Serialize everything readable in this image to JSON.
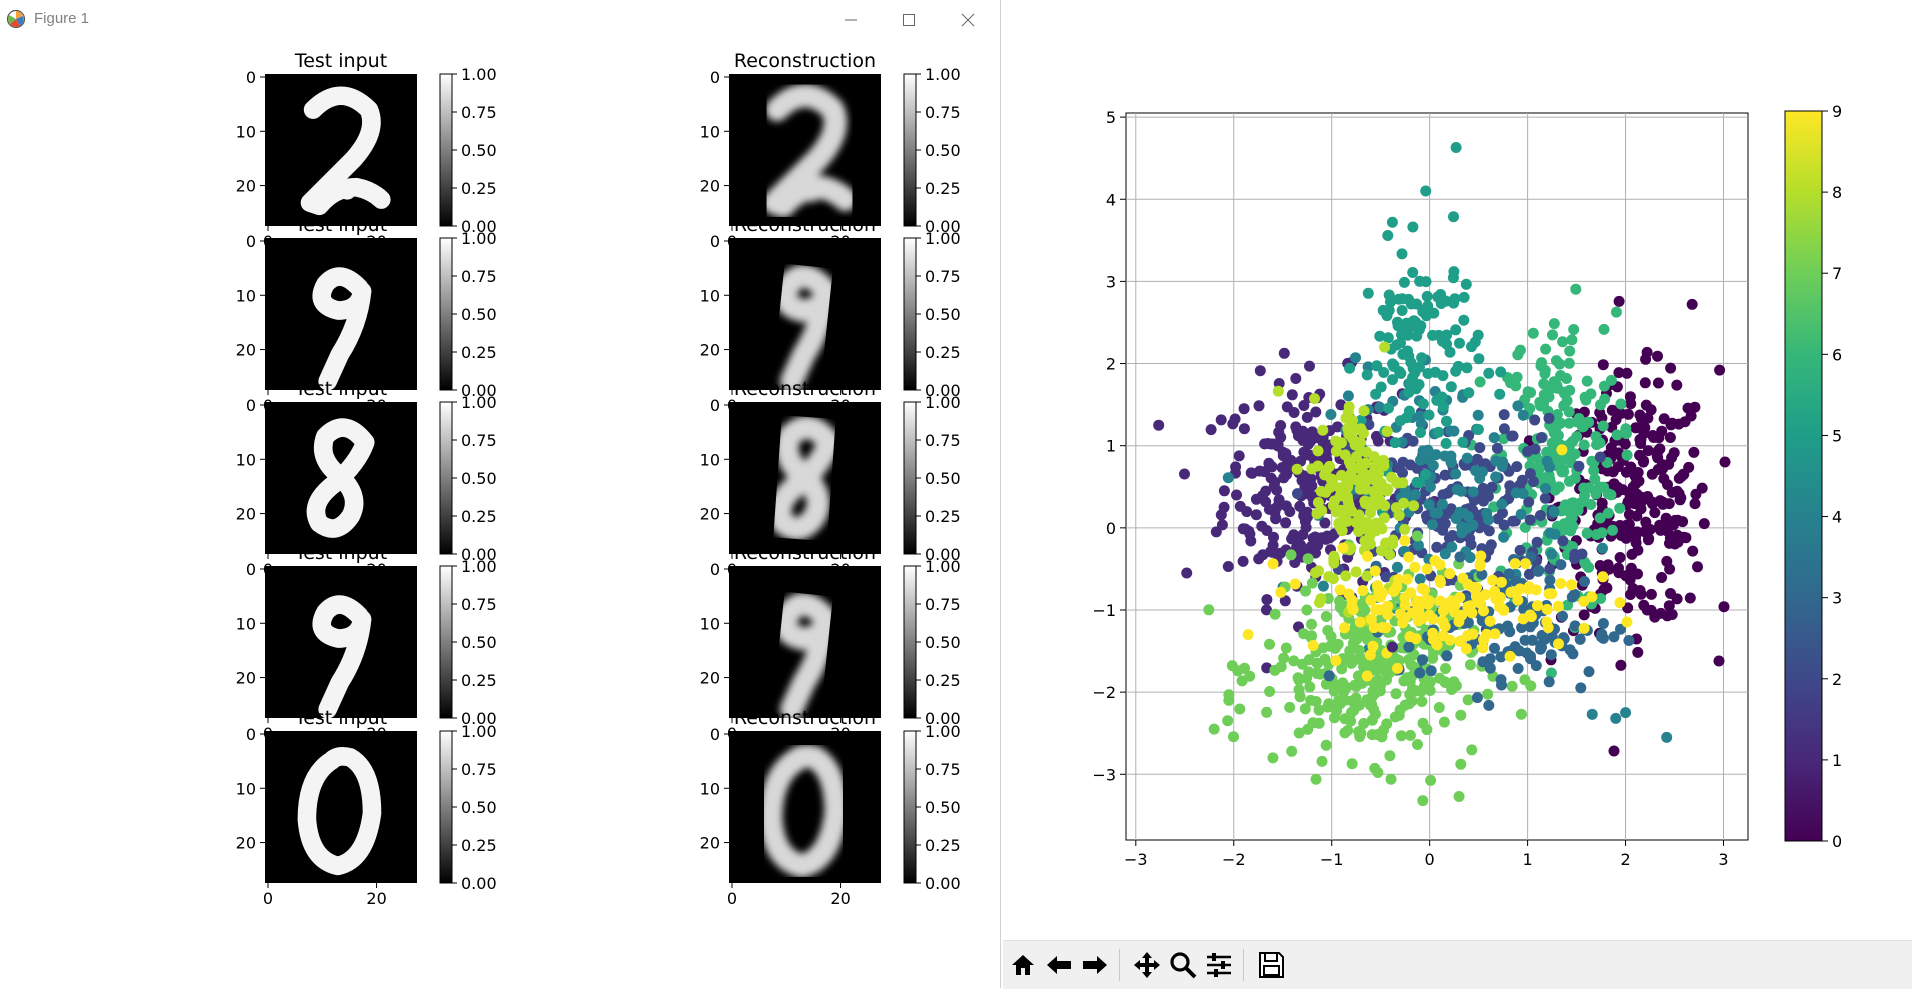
{
  "window": {
    "title": "Figure 1"
  },
  "left_figure": {
    "rows": [
      {
        "left_title": "Test input",
        "right_title": "Reconstruction",
        "digit": "2"
      },
      {
        "left_title": "Test input",
        "right_title": "Reconstruction",
        "digit": "9"
      },
      {
        "left_title": "Test input",
        "right_title": "Reconstruction",
        "digit": "8"
      },
      {
        "left_title": "Test input",
        "right_title": "Reconstruction",
        "digit": "9"
      },
      {
        "left_title": "Test input",
        "right_title": "Reconstruction",
        "digit": "0"
      }
    ],
    "image_ticks_y": [
      "0",
      "10",
      "20"
    ],
    "image_ticks_x": [
      "0",
      "20"
    ],
    "colorbar_ticks": [
      "1.00",
      "0.75",
      "0.50",
      "0.25",
      "0.00"
    ]
  },
  "chart_data": {
    "type": "scatter",
    "title": "",
    "xlabel": "",
    "ylabel": "",
    "xlim": [
      -3.1,
      3.25
    ],
    "ylim": [
      -3.8,
      5.05
    ],
    "xticks": [
      -3,
      -2,
      -1,
      0,
      1,
      2,
      3
    ],
    "yticks": [
      -3,
      -2,
      -1,
      0,
      1,
      2,
      3,
      4,
      5
    ],
    "grid": true,
    "colormap": "viridis",
    "colorbar": {
      "min": 0,
      "max": 9,
      "ticks": [
        0,
        1,
        2,
        3,
        4,
        5,
        6,
        7,
        8,
        9
      ]
    },
    "clusters": [
      {
        "label": 0,
        "center": [
          2.1,
          0.3
        ],
        "spread": [
          0.38,
          0.75
        ],
        "count": 280
      },
      {
        "label": 1,
        "center": [
          -1.2,
          0.5
        ],
        "spread": [
          0.45,
          0.65
        ],
        "count": 280
      },
      {
        "label": 2,
        "center": [
          0.3,
          0.2
        ],
        "spread": [
          0.55,
          0.55
        ],
        "count": 200
      },
      {
        "label": 3,
        "center": [
          0.8,
          -1.2
        ],
        "spread": [
          0.55,
          0.4
        ],
        "count": 120
      },
      {
        "label": 4,
        "center": [
          0.2,
          0.5
        ],
        "spread": [
          0.6,
          0.7
        ],
        "count": 120
      },
      {
        "label": 5,
        "center": [
          -0.1,
          2.1
        ],
        "spread": [
          0.3,
          0.65
        ],
        "count": 130
      },
      {
        "label": 6,
        "center": [
          1.3,
          0.8
        ],
        "spread": [
          0.3,
          0.9
        ],
        "count": 230
      },
      {
        "label": 7,
        "center": [
          -0.6,
          -1.7
        ],
        "spread": [
          0.55,
          0.55
        ],
        "count": 320
      },
      {
        "label": 8,
        "center": [
          -0.7,
          0.4
        ],
        "spread": [
          0.25,
          0.6
        ],
        "count": 160
      },
      {
        "label": 9,
        "center": [
          0.1,
          -0.9
        ],
        "spread": [
          0.7,
          0.3
        ],
        "count": 150
      }
    ],
    "points": [
      {
        "x": 0.27,
        "y": 4.63,
        "c": 5
      },
      {
        "x": -0.04,
        "y": 4.1,
        "c": 5
      },
      {
        "x": -0.38,
        "y": 3.72,
        "c": 5
      },
      {
        "x": 2.68,
        "y": 2.72,
        "c": 0
      },
      {
        "x": 2.96,
        "y": 1.92,
        "c": 0
      },
      {
        "x": -2.48,
        "y": -0.55,
        "c": 1
      },
      {
        "x": -1.16,
        "y": -3.06,
        "c": 7
      },
      {
        "x": -0.07,
        "y": -3.32,
        "c": 7
      },
      {
        "x": 0.3,
        "y": -3.27,
        "c": 7
      },
      {
        "x": 2.42,
        "y": -2.55,
        "c": 4
      },
      {
        "x": 2.0,
        "y": -2.25,
        "c": 4
      },
      {
        "x": 1.66,
        "y": -2.27,
        "c": 4
      },
      {
        "x": 1.9,
        "y": -2.32,
        "c": 4
      },
      {
        "x": -2.2,
        "y": -2.45,
        "c": 7
      },
      {
        "x": -2.05,
        "y": -2.1,
        "c": 7
      },
      {
        "x": -1.6,
        "y": -2.8,
        "c": 7
      },
      {
        "x": -0.38,
        "y": -1.45,
        "c": 1
      },
      {
        "x": -0.46,
        "y": 2.2,
        "c": 8
      },
      {
        "x": 1.35,
        "y": 0.95,
        "c": 9
      }
    ]
  },
  "toolbar": {
    "buttons": [
      {
        "icon": "home-icon"
      },
      {
        "icon": "back-icon"
      },
      {
        "icon": "forward-icon"
      },
      {
        "icon": "pan-icon"
      },
      {
        "icon": "zoom-icon"
      },
      {
        "icon": "subplots-icon"
      },
      {
        "icon": "save-icon"
      }
    ]
  }
}
